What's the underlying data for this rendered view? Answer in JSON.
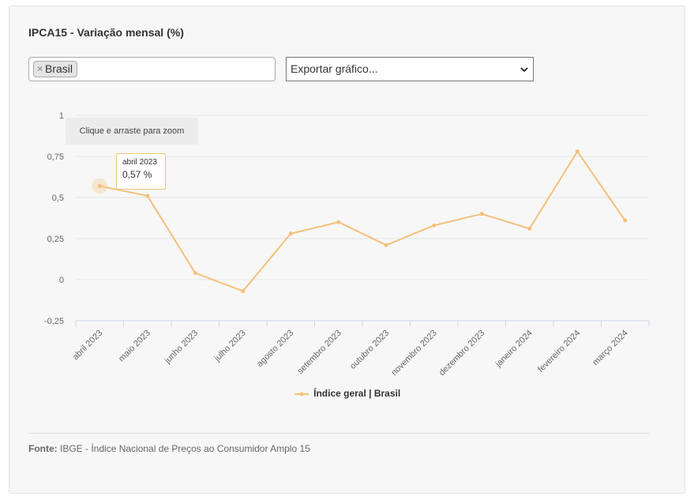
{
  "header": {
    "title": "IPCA15 - Variação mensal (%)"
  },
  "filter": {
    "tag_label": "Brasil",
    "tag_remove": "×"
  },
  "export": {
    "label": "Exportar gráfico..."
  },
  "zoom_hint": "Clique e arraste para zoom",
  "tooltip": {
    "date": "abril 2023",
    "value": "0,57 %"
  },
  "footer": {
    "source_label": "Fonte:",
    "source_text": "IBGE - Índice Nacional de Preços ao Consumidor Amplo 15"
  },
  "colors": {
    "series": "#f4c07a",
    "grid": "#e6e6e6",
    "axis": "#ccd6eb"
  },
  "chart_data": {
    "type": "line",
    "title": "IPCA15 - Variação mensal (%)",
    "xlabel": "",
    "ylabel": "",
    "categories": [
      "abril 2023",
      "maio 2023",
      "junho 2023",
      "julho 2023",
      "agosto 2023",
      "setembro 2023",
      "outubro 2023",
      "novembro 2023",
      "dezembro 2023",
      "janeiro 2024",
      "fevereiro 2024",
      "março 2024"
    ],
    "series": [
      {
        "name": "Índice geral | Brasil",
        "values": [
          0.57,
          0.51,
          0.04,
          -0.07,
          0.28,
          0.35,
          0.21,
          0.33,
          0.4,
          0.31,
          0.78,
          0.36
        ]
      }
    ],
    "yticks": [
      1,
      0.75,
      0.5,
      0.25,
      0,
      -0.25
    ],
    "ytick_labels": [
      "1",
      "0,75",
      "0,5",
      "0,25",
      "0",
      "-0,25"
    ],
    "ylim": [
      -0.25,
      1
    ],
    "grid": true,
    "legend": "bottom-center"
  }
}
